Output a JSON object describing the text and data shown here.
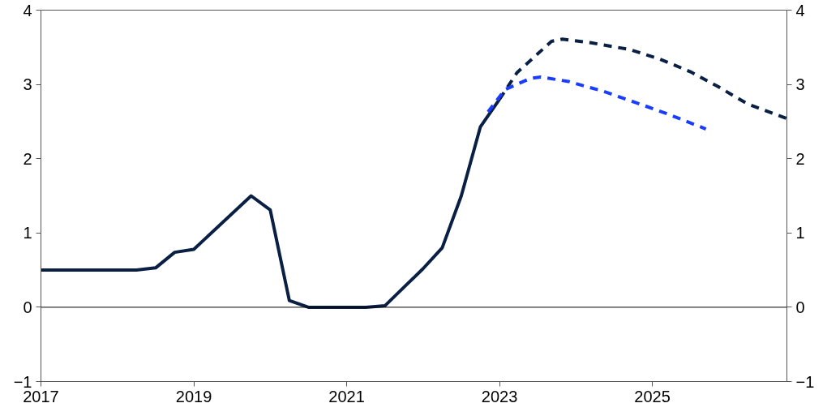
{
  "chart_data": {
    "type": "line",
    "xlim": [
      2017,
      2026.76
    ],
    "xticks": [
      2017,
      2019,
      2021,
      2023,
      2025
    ],
    "ylim": [
      -1,
      4
    ],
    "yticks": [
      {
        "value": -1,
        "label": "−1"
      },
      0,
      1,
      2,
      3,
      4
    ],
    "y2lim": [
      -1,
      4
    ],
    "y2ticks": [
      {
        "value": -1,
        "label": "−1"
      },
      0,
      1,
      2,
      3,
      4
    ],
    "grid": false,
    "marker": "none",
    "ref_lines": [
      {
        "axis": "y",
        "value": 0,
        "color": "#000000",
        "line_style": "solid"
      }
    ],
    "series": [
      {
        "color": "#0a1f44",
        "line_style": "solid",
        "x": [
          2017,
          2018.25,
          2018.5,
          2018.75,
          2019,
          2019.75,
          2020.0,
          2020.25,
          2020.5,
          2021.25,
          2021.5,
          2021.75,
          2022.0,
          2022.25,
          2022.5,
          2022.75,
          2023.0
        ],
        "values": [
          0.5,
          0.5,
          0.53,
          0.74,
          0.78,
          1.5,
          1.31,
          0.09,
          0,
          0,
          0.02,
          0.27,
          0.52,
          0.8,
          1.5,
          2.43,
          2.8
        ]
      },
      {
        "color": "#0a1f44",
        "line_style": "dashed",
        "x": [
          2023.0,
          2023.23,
          2023.68,
          2023.82,
          2024.2,
          2024.7,
          2025.1,
          2025.5,
          2025.86,
          2026.24,
          2026.76
        ],
        "values": [
          2.8,
          3.16,
          3.58,
          3.61,
          3.56,
          3.47,
          3.34,
          3.17,
          2.97,
          2.74,
          2.54
        ]
      },
      {
        "color": "#1a3cff",
        "line_style": "dashed",
        "x": [
          2022.85,
          2023.07,
          2023.4,
          2023.54,
          2023.9,
          2024.35,
          2024.77,
          2025.18,
          2025.7
        ],
        "values": [
          2.63,
          2.93,
          3.08,
          3.1,
          3.04,
          2.91,
          2.76,
          2.61,
          2.4
        ]
      }
    ]
  }
}
